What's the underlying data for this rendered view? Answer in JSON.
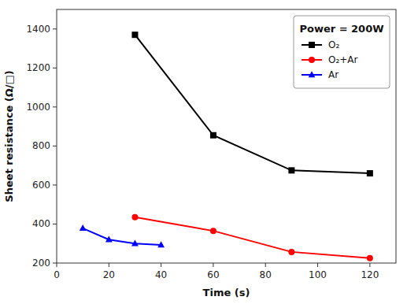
{
  "chart_data": {
    "type": "line",
    "title": "Power = 200W",
    "x_label": "Time (s)",
    "y_label": "Sheet resistance (Ω/□)",
    "xlim": [
      0,
      130
    ],
    "ylim": [
      200,
      1500
    ],
    "xticks": [
      0,
      20,
      40,
      60,
      80,
      100,
      120
    ],
    "yticks": [
      200,
      400,
      600,
      800,
      1000,
      1200,
      1400
    ],
    "legend": "upper right",
    "series": [
      {
        "name": "O₂",
        "color": "black",
        "marker": "square",
        "x": [
          30,
          60,
          90,
          120
        ],
        "values": [
          1370,
          855,
          675,
          660
        ]
      },
      {
        "name": "O₂+Ar",
        "color": "red",
        "marker": "circle",
        "x": [
          30,
          60,
          90,
          120
        ],
        "values": [
          435,
          365,
          257,
          225
        ]
      },
      {
        "name": "Ar",
        "color": "blue",
        "marker": "triangle",
        "x": [
          10,
          20,
          30,
          40
        ],
        "values": [
          378,
          320,
          300,
          293
        ]
      }
    ]
  }
}
